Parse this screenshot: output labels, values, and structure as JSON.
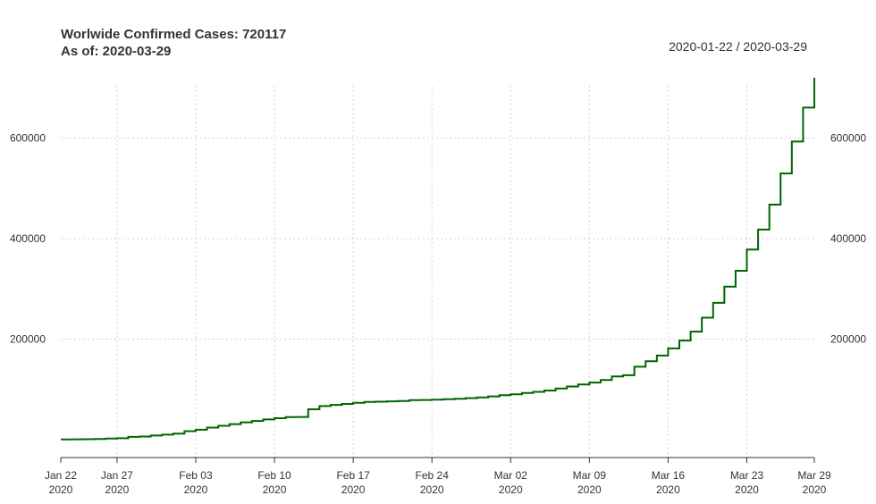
{
  "title_line1": "Worlwide Confirmed Cases: 720117",
  "title_line2": "As of: 2020-03-29",
  "date_range_label": "2020-01-22 / 2020-03-29",
  "colors": {
    "line": "#006400",
    "grid": "#d3d3d3",
    "axis": "#333333"
  },
  "chart_data": {
    "type": "line",
    "step": true,
    "title": "Worlwide Confirmed Cases: 720117",
    "subtitle": "As of: 2020-03-29",
    "xlabel": "",
    "ylabel": "",
    "grid": true,
    "y_axis_both_sides": true,
    "x_range": [
      "2020-01-22",
      "2020-03-29"
    ],
    "ylim": [
      0,
      720117
    ],
    "x_ticks": [
      {
        "date": "2020-01-22",
        "label": "Jan 22",
        "year": "2020"
      },
      {
        "date": "2020-01-27",
        "label": "Jan 27",
        "year": "2020"
      },
      {
        "date": "2020-02-03",
        "label": "Feb 03",
        "year": "2020"
      },
      {
        "date": "2020-02-10",
        "label": "Feb 10",
        "year": "2020"
      },
      {
        "date": "2020-02-17",
        "label": "Feb 17",
        "year": "2020"
      },
      {
        "date": "2020-02-24",
        "label": "Feb 24",
        "year": "2020"
      },
      {
        "date": "2020-03-02",
        "label": "Mar 02",
        "year": "2020"
      },
      {
        "date": "2020-03-09",
        "label": "Mar 09",
        "year": "2020"
      },
      {
        "date": "2020-03-16",
        "label": "Mar 16",
        "year": "2020"
      },
      {
        "date": "2020-03-23",
        "label": "Mar 23",
        "year": "2020"
      },
      {
        "date": "2020-03-29",
        "label": "Mar 29",
        "year": "2020"
      }
    ],
    "y_ticks": [
      200000,
      400000,
      600000
    ],
    "series": [
      {
        "x": [
          "2020-01-22",
          "2020-01-23",
          "2020-01-24",
          "2020-01-25",
          "2020-01-26",
          "2020-01-27",
          "2020-01-28",
          "2020-01-29",
          "2020-01-30",
          "2020-01-31",
          "2020-02-01",
          "2020-02-02",
          "2020-02-03",
          "2020-02-04",
          "2020-02-05",
          "2020-02-06",
          "2020-02-07",
          "2020-02-08",
          "2020-02-09",
          "2020-02-10",
          "2020-02-11",
          "2020-02-12",
          "2020-02-13",
          "2020-02-14",
          "2020-02-15",
          "2020-02-16",
          "2020-02-17",
          "2020-02-18",
          "2020-02-19",
          "2020-02-20",
          "2020-02-21",
          "2020-02-22",
          "2020-02-23",
          "2020-02-24",
          "2020-02-25",
          "2020-02-26",
          "2020-02-27",
          "2020-02-28",
          "2020-02-29",
          "2020-03-01",
          "2020-03-02",
          "2020-03-03",
          "2020-03-04",
          "2020-03-05",
          "2020-03-06",
          "2020-03-07",
          "2020-03-08",
          "2020-03-09",
          "2020-03-10",
          "2020-03-11",
          "2020-03-12",
          "2020-03-13",
          "2020-03-14",
          "2020-03-15",
          "2020-03-16",
          "2020-03-17",
          "2020-03-18",
          "2020-03-19",
          "2020-03-20",
          "2020-03-21",
          "2020-03-22",
          "2020-03-23",
          "2020-03-24",
          "2020-03-25",
          "2020-03-26",
          "2020-03-27",
          "2020-03-28",
          "2020-03-29"
        ],
        "values": [
          555,
          654,
          941,
          1434,
          2118,
          2927,
          5578,
          6166,
          8234,
          9927,
          12038,
          16787,
          19881,
          23892,
          27635,
          30794,
          34391,
          37120,
          40150,
          42762,
          44802,
          45221,
          60368,
          66885,
          69030,
          71224,
          73258,
          75136,
          75639,
          76197,
          76819,
          78572,
          78958,
          79561,
          80406,
          81388,
          82746,
          84112,
          86011,
          88369,
          90306,
          92840,
          95120,
          97886,
          101801,
          105847,
          109821,
          113590,
          118620,
          125875,
          128343,
          145193,
          156097,
          167449,
          181546,
          197168,
          214915,
          242713,
          272167,
          304528,
          335955,
          378287,
          417966,
          467594,
          529591,
          593291,
          660706,
          720117
        ]
      }
    ]
  }
}
